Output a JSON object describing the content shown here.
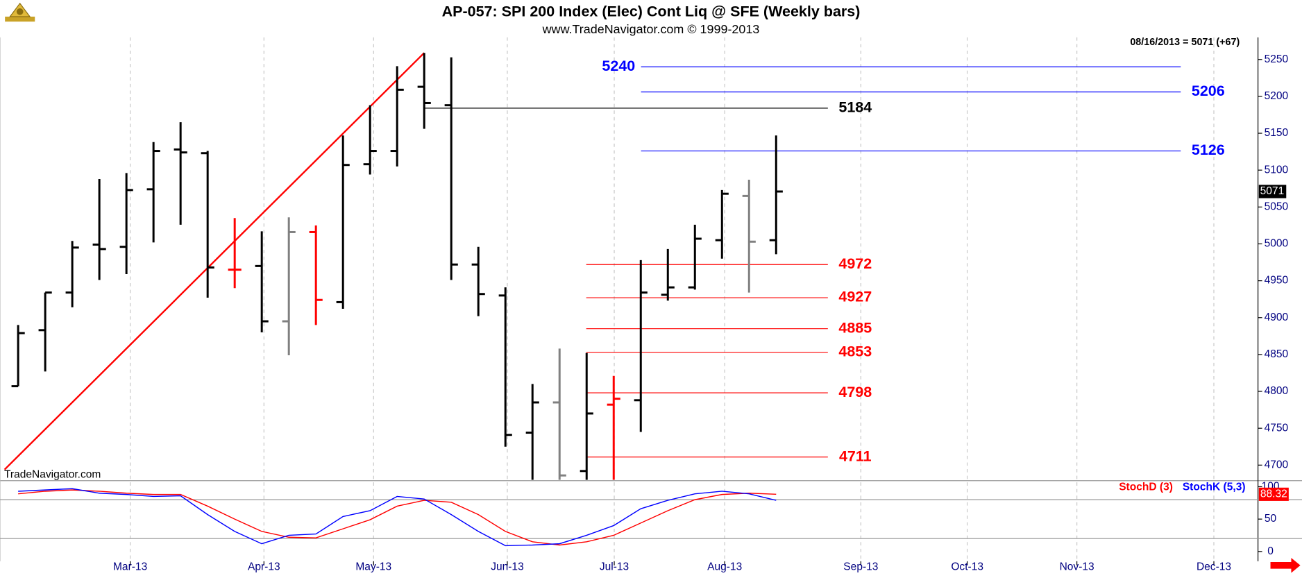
{
  "chart_data": [
    {
      "type": "ohlc",
      "title": "AP-057:  SPI 200 Index (Elec) Cont Liq @ SFE  (Weekly bars)",
      "subtitle": "www.TradeNavigator.com © 1999-2013",
      "info": "08/16/2013 = 5071 (+67)",
      "watermark": "TradeNavigator.com",
      "x": [
        0,
        1,
        2,
        3,
        4,
        5,
        6,
        7,
        8,
        9,
        10,
        11,
        12,
        13,
        14,
        15,
        16,
        17,
        18,
        19,
        20,
        21,
        22,
        23,
        24,
        25,
        26,
        27,
        28
      ],
      "open": [
        4807,
        4883,
        4934,
        4999,
        4996,
        5074,
        5128,
        5123,
        4965,
        4970,
        4895,
        5016,
        4921,
        5108,
        5126,
        5213,
        5188,
        4972,
        4930,
        4744,
        4785,
        4692,
        4782,
        4788,
        4931,
        4941,
        5005,
        5065,
        5005
      ],
      "high": [
        4890,
        4934,
        5004,
        5088,
        5096,
        5138,
        5165,
        5126,
        5035,
        5017,
        5036,
        5025,
        5147,
        5188,
        5241,
        5259,
        5253,
        4996,
        4941,
        4810,
        4858,
        4852,
        4821,
        4978,
        4993,
        5026,
        5073,
        5087,
        5147
      ],
      "low": [
        4807,
        4827,
        4914,
        4951,
        4959,
        5002,
        5026,
        4927,
        4940,
        4880,
        4849,
        4890,
        4912,
        5094,
        5105,
        5156,
        4951,
        4902,
        4725,
        4680,
        4680,
        4680,
        4680,
        4745,
        4923,
        4938,
        4980,
        4934,
        4986
      ],
      "close": [
        4879,
        4934,
        4995,
        4993,
        5073,
        5126,
        5124,
        4968,
        4965,
        4895,
        5016,
        4924,
        5107,
        5126,
        5209,
        5191,
        4972,
        4932,
        4741,
        4785,
        4686,
        4770,
        4790,
        4934,
        4941,
        5007,
        5068,
        5003,
        5071
      ],
      "colors": [
        "#000000",
        "#000000",
        "#000000",
        "#000000",
        "#000000",
        "#000000",
        "#000000",
        "#000000",
        "#ff0000",
        "#000000",
        "#808080",
        "#ff0000",
        "#000000",
        "#000000",
        "#000000",
        "#000000",
        "#000000",
        "#000000",
        "#000000",
        "#000000",
        "#808080",
        "#000000",
        "#ff0000",
        "#000000",
        "#000000",
        "#000000",
        "#000000",
        "#808080",
        "#000000"
      ],
      "levels": [
        {
          "value": 5240,
          "color": "#0000ff"
        },
        {
          "value": 5206,
          "color": "#0000ff"
        },
        {
          "value": 5184,
          "color": "#000000"
        },
        {
          "value": 5126,
          "color": "#0000ff"
        },
        {
          "value": 4972,
          "color": "#ff0000"
        },
        {
          "value": 4927,
          "color": "#ff0000"
        },
        {
          "value": 4885,
          "color": "#ff0000"
        },
        {
          "value": 4853,
          "color": "#ff0000"
        },
        {
          "value": 4798,
          "color": "#ff0000"
        },
        {
          "value": 4711,
          "color": "#ff0000"
        }
      ],
      "trendline": {
        "x": [
          -0.5,
          15
        ],
        "y": [
          4694,
          5259
        ],
        "color": "#ff0000"
      },
      "xlim": [
        -0.67,
        45.8
      ],
      "xticks": [
        {
          "value": 4.14,
          "label": "Mar-13"
        },
        {
          "value": 9.08,
          "label": "Apr-13"
        },
        {
          "value": 13.13,
          "label": "May-13"
        },
        {
          "value": 18.07,
          "label": "Jun-13"
        },
        {
          "value": 22.02,
          "label": "Jul-13"
        },
        {
          "value": 26.1,
          "label": "Aug-13"
        },
        {
          "value": 31.13,
          "label": "Sep-13"
        },
        {
          "value": 35.06,
          "label": "Oct-13"
        },
        {
          "value": 39.11,
          "label": "Nov-13"
        },
        {
          "value": 44.17,
          "label": "Dec-13"
        }
      ],
      "ylim": [
        4680,
        5280
      ],
      "yticks": [
        4700,
        4750,
        4800,
        4850,
        4900,
        4950,
        5000,
        5050,
        5100,
        5150,
        5200,
        5250
      ],
      "grid": true
    },
    {
      "type": "line",
      "x": [
        0,
        1,
        2,
        3,
        4,
        5,
        6,
        7,
        8,
        9,
        10,
        11,
        12,
        13,
        14,
        15,
        16,
        17,
        18,
        19,
        20,
        21,
        22,
        23,
        24,
        25,
        26,
        27,
        28
      ],
      "series": [
        {
          "name": "StochD (3)",
          "color": "#ff0000",
          "values": [
            89,
            93,
            95,
            93,
            90,
            88,
            88,
            70,
            50,
            31,
            22,
            21,
            35,
            49,
            70,
            79,
            76,
            57,
            31,
            15,
            10,
            15,
            25,
            44,
            63,
            80,
            88,
            90,
            88.32
          ]
        },
        {
          "name": "StochK (5,3)",
          "color": "#0000ff",
          "values": [
            93,
            95,
            97,
            90,
            88,
            85,
            86,
            57,
            31,
            12,
            25,
            27,
            54,
            63,
            85,
            81,
            57,
            31,
            9,
            10,
            12,
            25,
            40,
            66,
            79,
            89,
            93,
            89,
            79
          ]
        }
      ],
      "reference_lines": [
        20,
        80
      ],
      "ylim": [
        -15,
        108
      ],
      "yticks": [
        0,
        50,
        100
      ]
    }
  ]
}
